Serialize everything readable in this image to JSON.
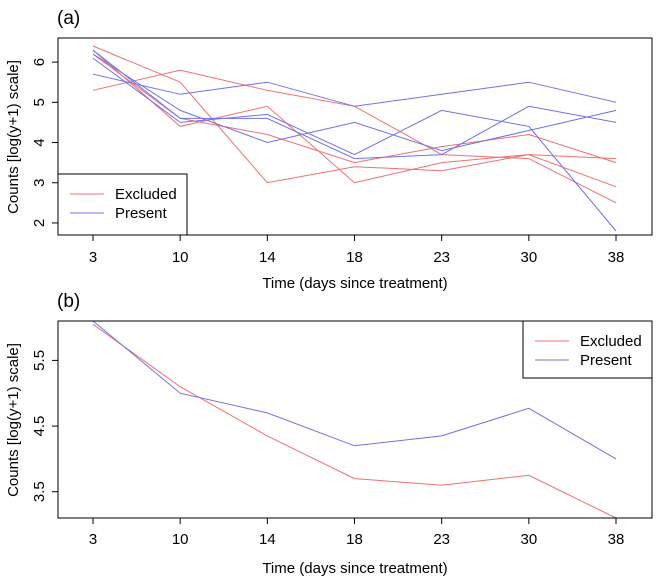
{
  "chart_data": [
    {
      "type": "line",
      "panel_label": "(a)",
      "xlabel": "Time (days since treatment)",
      "ylabel": "Counts [log(y+1) scale]",
      "x_categories": [
        "3",
        "10",
        "14",
        "18",
        "23",
        "30",
        "38"
      ],
      "y_ticks": [
        2,
        3,
        4,
        5,
        6
      ],
      "ylim": [
        1.7,
        6.6
      ],
      "legend": {
        "placement": "bottom-left",
        "entries": [
          "Excluded",
          "Present"
        ]
      },
      "series": [
        {
          "name": "Excluded",
          "color": "#f07070",
          "values": [
            6.4,
            5.5,
            3.0,
            3.4,
            3.3,
            3.7,
            2.9
          ]
        },
        {
          "name": "Excluded",
          "color": "#f07070",
          "values": [
            6.3,
            4.4,
            4.9,
            3.0,
            3.5,
            3.7,
            3.6
          ]
        },
        {
          "name": "Excluded",
          "color": "#f07070",
          "values": [
            6.2,
            4.6,
            4.2,
            3.5,
            3.9,
            4.2,
            3.5
          ]
        },
        {
          "name": "Excluded",
          "color": "#f07070",
          "values": [
            5.3,
            5.8,
            5.3,
            4.9,
            3.7,
            3.6,
            2.5
          ]
        },
        {
          "name": "Present",
          "color": "#7070ee",
          "values": [
            6.3,
            4.6,
            4.6,
            3.6,
            3.7,
            4.9,
            4.5
          ]
        },
        {
          "name": "Present",
          "color": "#7070ee",
          "values": [
            5.7,
            5.2,
            5.5,
            4.9,
            5.2,
            5.5,
            5.0
          ]
        },
        {
          "name": "Present",
          "color": "#7070ee",
          "values": [
            6.2,
            4.8,
            4.0,
            4.5,
            3.8,
            4.3,
            4.8
          ]
        },
        {
          "name": "Present",
          "color": "#7070ee",
          "values": [
            6.1,
            4.5,
            4.7,
            3.7,
            4.8,
            4.4,
            1.8
          ]
        }
      ]
    },
    {
      "type": "line",
      "panel_label": "(b)",
      "xlabel": "Time (days since treatment)",
      "ylabel": "Counts [log(y+1) scale]",
      "x_categories": [
        "3",
        "10",
        "14",
        "18",
        "23",
        "30",
        "38"
      ],
      "y_ticks": [
        3.5,
        4.5,
        5.5
      ],
      "y_tick_labels": [
        "3.5",
        "4.5",
        "5.5"
      ],
      "ylim": [
        3.1,
        6.1
      ],
      "legend": {
        "placement": "top-right",
        "entries": [
          "Excluded",
          "Present"
        ]
      },
      "series": [
        {
          "name": "Excluded",
          "color": "#f07070",
          "values": [
            6.05,
            5.1,
            4.35,
            3.7,
            3.6,
            3.75,
            3.1
          ]
        },
        {
          "name": "Present",
          "color": "#7070ee",
          "values": [
            6.1,
            5.0,
            4.7,
            4.2,
            4.35,
            4.77,
            4.0
          ]
        }
      ]
    }
  ]
}
